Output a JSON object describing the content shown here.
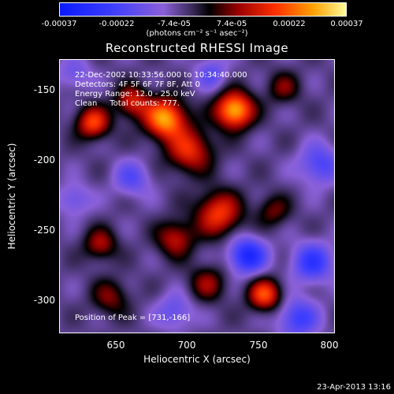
{
  "chart_data": {
    "type": "heatmap",
    "title": "Reconstructed RHESSI Image",
    "xlabel": "Heliocentric X (arcsec)",
    "ylabel": "Heliocentric Y (arcsec)",
    "xlim": [
      610,
      800
    ],
    "ylim": [
      -325,
      -130
    ],
    "x_ticks": [
      "650",
      "700",
      "750",
      "800"
    ],
    "y_ticks": [
      "-150",
      "-200",
      "-250",
      "-300"
    ],
    "colorbar": {
      "range": [
        -0.00037,
        0.00037
      ],
      "tick_labels": [
        "-0.00037",
        "-0.00022",
        "-7.4e-05",
        "7.4e-05",
        "0.00022",
        "0.00037"
      ],
      "units": "(photons cm⁻² s⁻¹ asec⁻²)"
    },
    "annotations": {
      "time_range": "22-Dec-2002 10:33:56.000 to 10:34:40.000",
      "detectors": "Detectors: 4F 5F 6F 7F 8F, Att 0",
      "energy": "Energy Range: 12.0 - 25.0 keV",
      "clean": "Clean     Total counts: 777.",
      "peak": "Position of Peak = [731,-166]"
    },
    "peak": [
      731,
      -166
    ],
    "sources": [
      {
        "x": 731,
        "y": -166,
        "amp": 0.00037,
        "sigma": 9
      },
      {
        "x": 683,
        "y": -172,
        "amp": 0.00034,
        "sigma": 10
      },
      {
        "x": 700,
        "y": -195,
        "amp": 0.00022,
        "sigma": 11
      },
      {
        "x": 660,
        "y": -160,
        "amp": 0.0002,
        "sigma": 8
      },
      {
        "x": 633,
        "y": -175,
        "amp": 0.00025,
        "sigma": 8
      },
      {
        "x": 720,
        "y": -240,
        "amp": 0.00024,
        "sigma": 11
      },
      {
        "x": 690,
        "y": -258,
        "amp": 0.00018,
        "sigma": 9
      },
      {
        "x": 758,
        "y": -238,
        "amp": 0.00012,
        "sigma": 8
      },
      {
        "x": 638,
        "y": -262,
        "amp": 0.00016,
        "sigma": 8
      },
      {
        "x": 712,
        "y": -290,
        "amp": 0.00014,
        "sigma": 9
      },
      {
        "x": 752,
        "y": -298,
        "amp": 0.00026,
        "sigma": 8
      },
      {
        "x": 645,
        "y": -300,
        "amp": 0.00013,
        "sigma": 9
      },
      {
        "x": 765,
        "y": -150,
        "amp": 0.00012,
        "sigma": 8
      },
      {
        "x": 785,
        "y": -275,
        "amp": -0.0002,
        "sigma": 10
      },
      {
        "x": 740,
        "y": -270,
        "amp": -0.00026,
        "sigma": 9
      },
      {
        "x": 775,
        "y": -315,
        "amp": -0.00018,
        "sigma": 10
      },
      {
        "x": 790,
        "y": -205,
        "amp": -0.00016,
        "sigma": 10
      },
      {
        "x": 660,
        "y": -215,
        "amp": -0.00013,
        "sigma": 9
      },
      {
        "x": 620,
        "y": -140,
        "amp": -0.0001,
        "sigma": 8
      },
      {
        "x": 715,
        "y": -140,
        "amp": -0.00012,
        "sigma": 8
      },
      {
        "x": 690,
        "y": -310,
        "amp": -0.00012,
        "sigma": 9
      },
      {
        "x": 620,
        "y": -230,
        "amp": -0.00011,
        "sigma": 8
      }
    ]
  },
  "footer": "23-Apr-2013 13:16"
}
